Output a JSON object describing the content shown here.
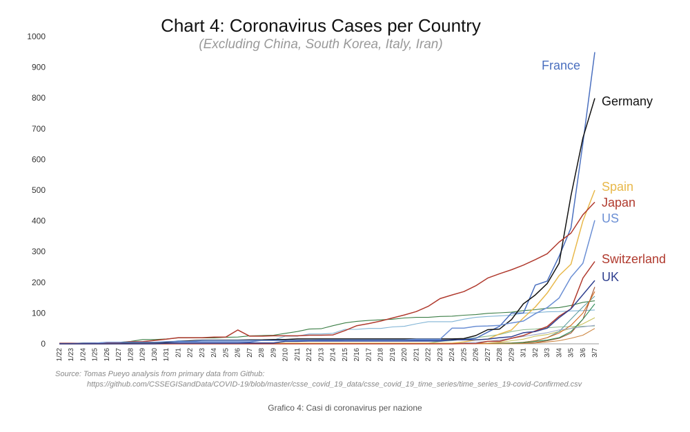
{
  "chart_data": {
    "type": "line",
    "title": "Chart 4: Coronavirus Cases per Country",
    "subtitle": "(Excluding China, South Korea, Italy, Iran)",
    "xlabel": "",
    "ylabel": "",
    "ylim": [
      0,
      1000
    ],
    "yticks": [
      0,
      100,
      200,
      300,
      400,
      500,
      600,
      700,
      800,
      900,
      1000
    ],
    "grid": false,
    "categories": [
      "1/22",
      "1/23",
      "1/24",
      "1/25",
      "1/26",
      "1/27",
      "1/28",
      "1/29",
      "1/30",
      "1/31",
      "2/1",
      "2/2",
      "2/3",
      "2/4",
      "2/5",
      "2/6",
      "2/7",
      "2/8",
      "2/9",
      "2/10",
      "2/11",
      "2/12",
      "2/13",
      "2/14",
      "2/15",
      "2/16",
      "2/17",
      "2/18",
      "2/19",
      "2/20",
      "2/21",
      "2/22",
      "2/23",
      "2/24",
      "2/25",
      "2/26",
      "2/27",
      "2/28",
      "2/29",
      "3/1",
      "3/2",
      "3/3",
      "3/4",
      "3/5",
      "3/6",
      "3/7"
    ],
    "series": [
      {
        "name": "France",
        "color": "#4a6fbf",
        "values": [
          0,
          0,
          2,
          3,
          3,
          3,
          4,
          5,
          5,
          5,
          6,
          6,
          6,
          6,
          6,
          6,
          6,
          11,
          11,
          11,
          11,
          11,
          11,
          11,
          12,
          12,
          12,
          12,
          12,
          12,
          12,
          12,
          12,
          12,
          14,
          18,
          38,
          57,
          100,
          100,
          191,
          204,
          285,
          377,
          653,
          949
        ]
      },
      {
        "name": "Germany",
        "color": "#111111",
        "values": [
          0,
          0,
          0,
          0,
          0,
          1,
          4,
          4,
          4,
          5,
          8,
          10,
          12,
          12,
          12,
          12,
          13,
          13,
          14,
          14,
          16,
          16,
          16,
          16,
          16,
          16,
          16,
          16,
          16,
          16,
          16,
          16,
          16,
          16,
          17,
          27,
          46,
          48,
          79,
          130,
          159,
          196,
          262,
          482,
          670,
          799
        ]
      },
      {
        "name": "Spain",
        "color": "#e8b84a",
        "values": [
          0,
          0,
          0,
          0,
          0,
          0,
          0,
          0,
          0,
          0,
          1,
          1,
          1,
          1,
          1,
          1,
          1,
          1,
          2,
          2,
          2,
          2,
          2,
          2,
          2,
          2,
          2,
          2,
          2,
          2,
          2,
          2,
          2,
          2,
          6,
          13,
          15,
          32,
          45,
          84,
          120,
          165,
          222,
          259,
          400,
          500
        ]
      },
      {
        "name": "Japan",
        "color": "#b03a2e",
        "values": [
          2,
          2,
          2,
          2,
          4,
          4,
          7,
          7,
          11,
          15,
          20,
          20,
          20,
          22,
          22,
          45,
          25,
          25,
          26,
          26,
          26,
          28,
          28,
          29,
          43,
          59,
          66,
          74,
          84,
          94,
          105,
          122,
          147,
          159,
          170,
          189,
          214,
          228,
          241,
          256,
          274,
          293,
          331,
          360,
          420,
          461
        ]
      },
      {
        "name": "US",
        "color": "#6b8fd4",
        "values": [
          1,
          1,
          2,
          2,
          5,
          5,
          5,
          5,
          5,
          7,
          8,
          8,
          11,
          11,
          11,
          11,
          11,
          11,
          11,
          11,
          12,
          12,
          13,
          13,
          13,
          13,
          13,
          13,
          13,
          13,
          15,
          15,
          15,
          51,
          51,
          57,
          58,
          60,
          68,
          74,
          98,
          118,
          149,
          217,
          262,
          402
        ]
      },
      {
        "name": "Switzerland",
        "color": "#b03a2e",
        "values": [
          0,
          0,
          0,
          0,
          0,
          0,
          0,
          0,
          0,
          0,
          0,
          0,
          0,
          0,
          0,
          0,
          0,
          0,
          0,
          0,
          0,
          0,
          0,
          0,
          0,
          0,
          0,
          0,
          0,
          0,
          0,
          0,
          0,
          0,
          1,
          1,
          8,
          8,
          18,
          27,
          42,
          56,
          90,
          114,
          214,
          268
        ]
      },
      {
        "name": "UK",
        "color": "#2f3f8f",
        "values": [
          0,
          0,
          0,
          0,
          0,
          0,
          0,
          0,
          0,
          2,
          2,
          2,
          2,
          2,
          2,
          2,
          3,
          3,
          3,
          8,
          8,
          9,
          9,
          9,
          9,
          9,
          9,
          9,
          9,
          9,
          9,
          9,
          9,
          13,
          13,
          13,
          15,
          20,
          23,
          36,
          40,
          51,
          85,
          114,
          160,
          206
        ]
      },
      {
        "name": "",
        "color": "#3a7d44",
        "values": [
          0,
          1,
          3,
          3,
          4,
          5,
          8,
          14,
          14,
          16,
          19,
          19,
          19,
          19,
          21,
          22,
          26,
          27,
          28,
          34,
          40,
          48,
          49,
          59,
          68,
          73,
          76,
          78,
          80,
          84,
          86,
          86,
          89,
          90,
          93,
          95,
          99,
          101,
          103,
          108,
          111,
          116,
          118,
          125,
          135,
          140
        ]
      },
      {
        "name": "",
        "color": "#7fb3d5",
        "values": [
          0,
          0,
          0,
          0,
          0,
          2,
          2,
          4,
          4,
          4,
          10,
          10,
          10,
          12,
          12,
          12,
          12,
          12,
          12,
          25,
          25,
          32,
          32,
          34,
          47,
          47,
          50,
          50,
          55,
          57,
          65,
          72,
          72,
          72,
          80,
          86,
          89,
          91,
          93,
          100,
          101,
          104,
          105,
          107,
          108,
          110
        ]
      },
      {
        "name": "",
        "color": "#a0522d",
        "values": [
          0,
          0,
          0,
          0,
          0,
          0,
          0,
          0,
          0,
          0,
          0,
          0,
          0,
          0,
          0,
          0,
          0,
          0,
          0,
          0,
          0,
          0,
          0,
          0,
          0,
          0,
          0,
          0,
          0,
          0,
          0,
          0,
          0,
          0,
          0,
          0,
          0,
          1,
          1,
          2,
          4,
          10,
          18,
          35,
          80,
          185
        ]
      },
      {
        "name": "",
        "color": "#c9c15a",
        "values": [
          0,
          0,
          0,
          0,
          0,
          0,
          0,
          0,
          0,
          0,
          0,
          0,
          0,
          0,
          0,
          0,
          0,
          0,
          0,
          0,
          0,
          0,
          0,
          0,
          0,
          0,
          0,
          0,
          0,
          0,
          0,
          0,
          0,
          0,
          0,
          1,
          2,
          5,
          10,
          15,
          25,
          30,
          40,
          50,
          65,
          85
        ]
      },
      {
        "name": "",
        "color": "#8fbc8f",
        "values": [
          0,
          0,
          0,
          0,
          0,
          0,
          0,
          0,
          0,
          0,
          0,
          0,
          0,
          0,
          0,
          0,
          0,
          0,
          0,
          0,
          0,
          0,
          0,
          0,
          0,
          0,
          0,
          0,
          0,
          2,
          2,
          2,
          8,
          10,
          15,
          20,
          25,
          30,
          40,
          46,
          48,
          52,
          55,
          56,
          57,
          58
        ]
      },
      {
        "name": "",
        "color": "#5f9ea0",
        "values": [
          0,
          0,
          0,
          0,
          0,
          0,
          0,
          0,
          0,
          0,
          0,
          0,
          0,
          0,
          0,
          0,
          0,
          0,
          0,
          0,
          0,
          0,
          0,
          0,
          0,
          0,
          0,
          0,
          0,
          0,
          0,
          0,
          0,
          0,
          0,
          0,
          0,
          0,
          1,
          5,
          10,
          20,
          40,
          80,
          120,
          155
        ]
      },
      {
        "name": "",
        "color": "#d2691e",
        "values": [
          0,
          0,
          0,
          0,
          0,
          0,
          0,
          0,
          0,
          0,
          0,
          0,
          0,
          0,
          0,
          0,
          0,
          0,
          0,
          0,
          0,
          0,
          0,
          0,
          0,
          0,
          0,
          0,
          0,
          0,
          0,
          0,
          0,
          0,
          0,
          1,
          1,
          2,
          3,
          5,
          10,
          20,
          35,
          60,
          100,
          170
        ]
      },
      {
        "name": "",
        "color": "#2e8b57",
        "values": [
          0,
          0,
          0,
          0,
          0,
          0,
          0,
          0,
          0,
          0,
          0,
          0,
          0,
          0,
          0,
          0,
          0,
          0,
          0,
          0,
          0,
          0,
          0,
          0,
          0,
          0,
          0,
          0,
          0,
          0,
          0,
          0,
          0,
          0,
          0,
          0,
          0,
          1,
          2,
          4,
          8,
          12,
          20,
          40,
          80,
          130
        ]
      },
      {
        "name": "",
        "color": "#9aa6c8",
        "values": [
          0,
          0,
          0,
          0,
          0,
          0,
          0,
          0,
          0,
          0,
          0,
          0,
          0,
          0,
          0,
          0,
          0,
          0,
          0,
          0,
          0,
          0,
          0,
          0,
          0,
          0,
          0,
          0,
          0,
          0,
          0,
          0,
          1,
          2,
          3,
          5,
          8,
          12,
          18,
          24,
          30,
          36,
          45,
          50,
          55,
          60
        ]
      },
      {
        "name": "",
        "color": "#cd853f",
        "values": [
          0,
          0,
          0,
          0,
          0,
          0,
          0,
          0,
          0,
          0,
          0,
          0,
          0,
          0,
          0,
          0,
          0,
          0,
          0,
          0,
          0,
          0,
          0,
          0,
          0,
          0,
          0,
          0,
          0,
          0,
          0,
          0,
          0,
          0,
          0,
          0,
          0,
          0,
          0,
          1,
          3,
          6,
          10,
          18,
          28,
          50
        ]
      }
    ]
  },
  "source": {
    "line1": "Source: Tomas Pueyo analysis from primary data from Github:",
    "line2": "https://github.com/CSSEGISandData/COVID-19/blob/master/csse_covid_19_data/csse_covid_19_time_series/time_series_19-covid-Confirmed.csv"
  },
  "caption": "Grafico 4: Casi di coronavirus per nazione"
}
